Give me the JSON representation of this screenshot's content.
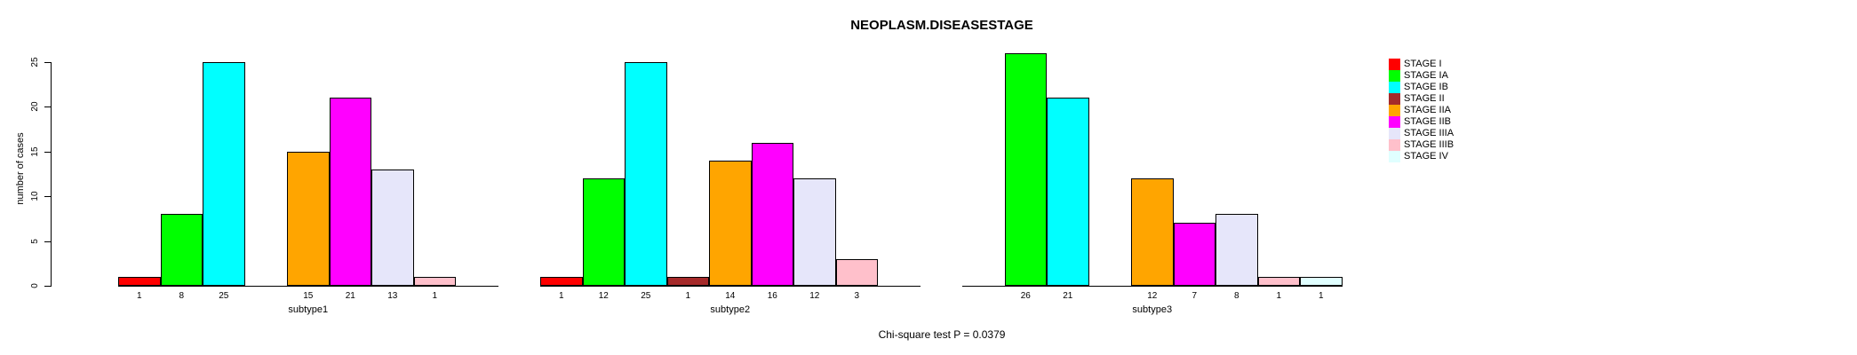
{
  "chart_data": {
    "type": "bar",
    "title": "NEOPLASM.DISEASESTAGE",
    "ylabel": "number of cases",
    "footnote": "Chi-square test P = 0.0379",
    "ylim": [
      0,
      25
    ],
    "yticks": [
      0,
      5,
      10,
      15,
      20,
      25
    ],
    "grid": false,
    "legend_position": "right",
    "categories": [
      "STAGE I",
      "STAGE IA",
      "STAGE IB",
      "STAGE II",
      "STAGE IIA",
      "STAGE IIB",
      "STAGE IIIA",
      "STAGE IIIB",
      "STAGE IV"
    ],
    "colors": [
      "#ff0000",
      "#00ff00",
      "#00ffff",
      "#a52a2a",
      "#ffa500",
      "#ff00ff",
      "#e6e6fa",
      "#ffc0cb",
      "#e0ffff"
    ],
    "panels": [
      {
        "label": "subtype1",
        "values": [
          1,
          8,
          25,
          0,
          15,
          21,
          13,
          1,
          0
        ]
      },
      {
        "label": "subtype2",
        "values": [
          1,
          12,
          25,
          1,
          14,
          16,
          12,
          3,
          0
        ]
      },
      {
        "label": "subtype3",
        "values": [
          0,
          26,
          21,
          0,
          12,
          7,
          8,
          1,
          1
        ]
      }
    ]
  }
}
